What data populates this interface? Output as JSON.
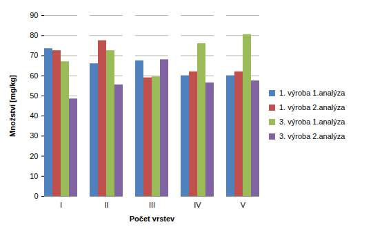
{
  "chart_data": {
    "type": "bar",
    "x_label": "Počet vrstev",
    "y_label": "Množství [mg/kg]",
    "categories": [
      "I",
      "II",
      "III",
      "IV",
      "V"
    ],
    "series": [
      {
        "name": "1. výroba 1.analýza",
        "color": "#4f81bd",
        "values": [
          73.5,
          66,
          67.5,
          60,
          60
        ]
      },
      {
        "name": "1. výroba 2.analýza",
        "color": "#c0504d",
        "values": [
          72.5,
          77.5,
          59,
          62,
          62
        ]
      },
      {
        "name": "3. výroba 1.analýza",
        "color": "#9bbb59",
        "values": [
          67,
          72.5,
          59.5,
          76,
          80.5
        ]
      },
      {
        "name": "3. výroba 2.analýza",
        "color": "#8064a2",
        "values": [
          48.5,
          55.5,
          68,
          56.5,
          57.5
        ]
      }
    ],
    "ylim": [
      0,
      90
    ],
    "yticks": [
      0,
      10,
      20,
      30,
      40,
      50,
      60,
      70,
      80,
      90
    ],
    "grid": true,
    "legend": "right"
  }
}
